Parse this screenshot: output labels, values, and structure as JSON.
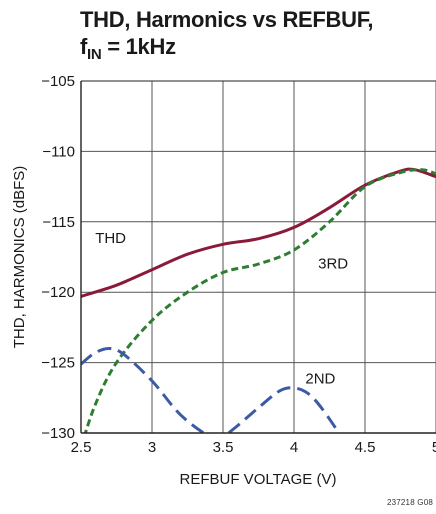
{
  "title_line1": "THD, Harmonics vs REFBUF,",
  "title_f": "f",
  "title_sub": "IN",
  "title_eq": " = 1kHz",
  "figure_id": "237218 G08",
  "chart_data": {
    "type": "line",
    "title": "THD, Harmonics vs REFBUF, fIN = 1kHz",
    "xlabel": "REFBUF VOLTAGE (V)",
    "ylabel": "THD, HARMONICS (dBFS)",
    "xlim": [
      2.5,
      5
    ],
    "ylim": [
      -130,
      -105
    ],
    "xticks": [
      2.5,
      3,
      3.5,
      4,
      4.5,
      5
    ],
    "xtick_labels": [
      "2.5",
      "3",
      "3.5",
      "4",
      "4.5",
      "5"
    ],
    "yticks": [
      -130,
      -125,
      -120,
      -115,
      -110,
      -105
    ],
    "ytick_labels": [
      "−130",
      "−125",
      "−120",
      "−115",
      "−110",
      "−105"
    ],
    "grid": true,
    "legend": "inline labels",
    "series": [
      {
        "name": "THD",
        "color": "#8b1a3a",
        "style": "solid",
        "label_at": [
          2.6,
          -116.5
        ],
        "x": [
          2.5,
          2.75,
          3.0,
          3.25,
          3.5,
          3.75,
          4.0,
          4.25,
          4.5,
          4.75,
          4.85,
          5.0
        ],
        "y": [
          -120.3,
          -119.5,
          -118.4,
          -117.3,
          -116.6,
          -116.2,
          -115.4,
          -114.0,
          -112.4,
          -111.4,
          -111.3,
          -111.8
        ]
      },
      {
        "name": "3RD",
        "color": "#2e7d32",
        "style": "dashed",
        "label_at": [
          4.17,
          -118.3
        ],
        "x": [
          2.5,
          2.6,
          2.75,
          3.0,
          3.25,
          3.5,
          3.75,
          4.0,
          4.25,
          4.5,
          4.75,
          4.9,
          5.0
        ],
        "y": [
          -131.0,
          -128.0,
          -125.0,
          -122.0,
          -120.0,
          -118.6,
          -118.0,
          -117.0,
          -115.0,
          -112.5,
          -111.5,
          -111.3,
          -111.6
        ]
      },
      {
        "name": "2ND",
        "color": "#3d5aa6",
        "style": "dashed",
        "label_at": [
          4.08,
          -126.5
        ],
        "x": [
          2.5,
          2.6,
          2.7,
          2.8,
          3.0,
          3.2,
          3.4,
          3.5,
          3.6,
          3.75,
          3.9,
          4.0,
          4.1,
          4.2,
          4.35
        ],
        "y": [
          -125.1,
          -124.3,
          -124.0,
          -124.4,
          -126.3,
          -128.7,
          -130.2,
          -130.2,
          -129.5,
          -128.2,
          -127.0,
          -126.8,
          -127.2,
          -128.3,
          -130.5
        ]
      }
    ]
  }
}
